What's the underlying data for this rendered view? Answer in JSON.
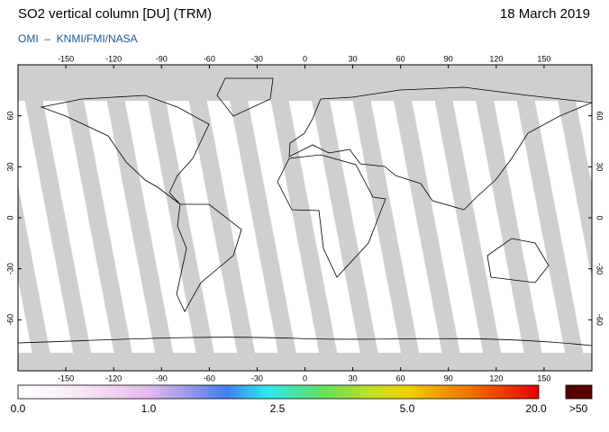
{
  "header": {
    "title": "SO2 vertical column [DU] (TRM)",
    "date": "18 March 2019",
    "credit": "OMI  –  KNMI/FMI/NASA"
  },
  "map": {
    "lon_ticks": [
      -150,
      -120,
      -90,
      -60,
      -30,
      0,
      30,
      60,
      90,
      120,
      150
    ],
    "lat_ticks": [
      60,
      30,
      0,
      -30,
      -60
    ]
  },
  "colorbar": {
    "labels": [
      "0.0",
      "1.0",
      "2.5",
      "5.0",
      "20.0"
    ],
    "overflow_label": ">50"
  }
}
